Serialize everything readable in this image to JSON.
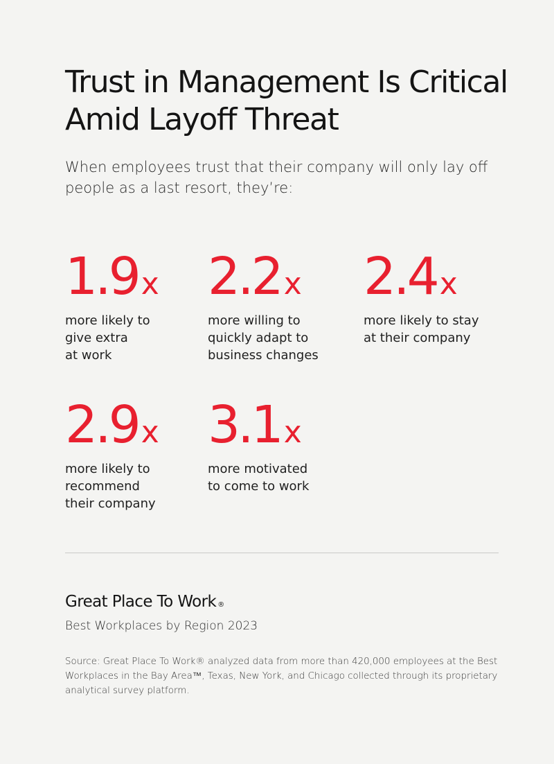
{
  "header": {
    "title": "Trust in Management Is Critical Amid Layoff Threat",
    "subtitle": "When employees trust that their company will only lay off people as a last resort, they’re:"
  },
  "stats": [
    {
      "value": "1.9",
      "unit": "x",
      "description": "more likely to\ngive extra\nat work"
    },
    {
      "value": "2.2",
      "unit": "x",
      "description": "more willing to\nquickly adapt to\nbusiness changes"
    },
    {
      "value": "2.4",
      "unit": "x",
      "description": "more likely to stay\nat their company"
    },
    {
      "value": "2.9",
      "unit": "x",
      "description": "more likely to\nrecommend\ntheir company"
    },
    {
      "value": "3.1",
      "unit": "x",
      "description": "more motivated\nto come to work"
    }
  ],
  "footer": {
    "brand": "Great Place To Work",
    "brand_mark": "®",
    "tagline": "Best Workplaces by Region 2023",
    "source": "Source: Great Place To Work® analyzed data from more than 420,000 employees at the Best Workplaces in the Bay Area™, Texas, New York, and Chicago collected through its proprietary analytical survey platform."
  },
  "colors": {
    "background": "#f4f4f2",
    "accent": "#e8202f",
    "text": "#141414"
  }
}
